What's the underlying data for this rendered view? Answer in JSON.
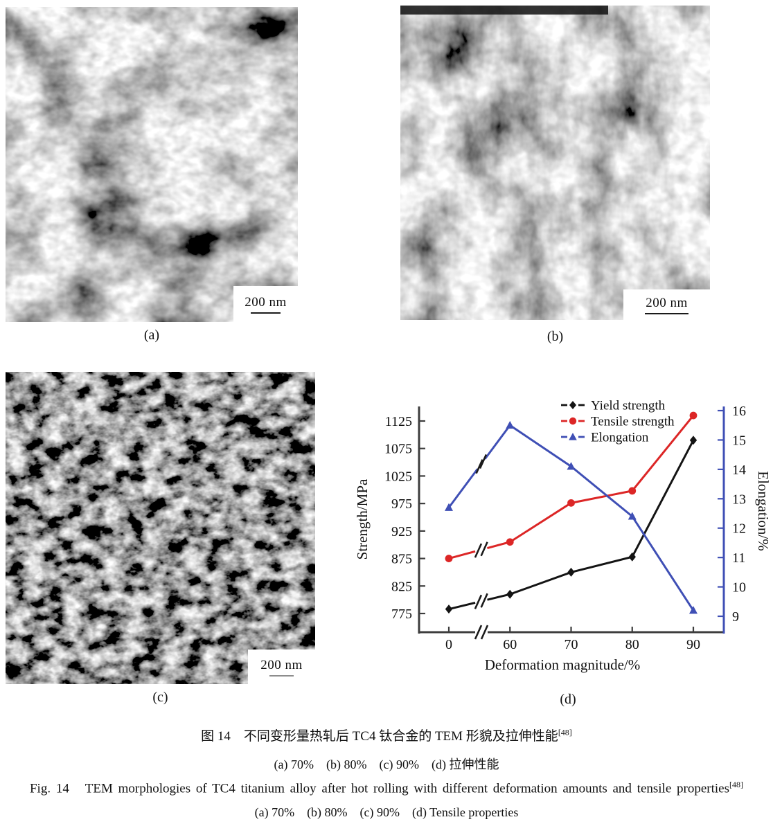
{
  "figure": {
    "panels": [
      {
        "label": "(a)",
        "scale_bar": "200 nm"
      },
      {
        "label": "(b)",
        "scale_bar": "200 nm"
      },
      {
        "label": "(c)",
        "scale_bar": "200 nm"
      },
      {
        "label": "(d)"
      }
    ],
    "caption": {
      "zh_title": "图 14　不同变形量热轧后 TC4 钛合金的 TEM 形貌及拉伸性能",
      "zh_ref": "[48]",
      "zh_subcaption": "(a) 70%    (b) 80%    (c) 90%    (d) 拉伸性能",
      "en_title": "Fig. 14   TEM morphologies of TC4 titanium alloy after hot rolling with different deformation amounts and tensile properties",
      "en_ref": "[48]",
      "en_subcaption": "(a) 70%    (b) 80%    (c) 90%    (d) Tensile properties"
    }
  },
  "chart_data": {
    "type": "line",
    "categories": [
      0,
      60,
      70,
      80,
      90
    ],
    "x_tick_labels": [
      "0",
      "60",
      "70",
      "80",
      "90"
    ],
    "xlabel": "Deformation magnitude/%",
    "ylabel_left": "Strength/MPa",
    "ylabel_right": "Elongation/%",
    "y_left_ticks": [
      775,
      825,
      875,
      925,
      975,
      1025,
      1075,
      1125
    ],
    "y_left_range": [
      755,
      1160
    ],
    "y_right_ticks": [
      9,
      10,
      11,
      12,
      13,
      14,
      15,
      16
    ],
    "y_right_range": [
      8.5,
      16.3
    ],
    "x_axis_break_between": [
      "0",
      "60"
    ],
    "grid": false,
    "legend_position": "top-right-inside",
    "axis_colors": {
      "left_bottom": "#3d3d3d",
      "right": "#3f4fb5"
    },
    "series": [
      {
        "name": "Yield strength",
        "axis": "left",
        "color": "#141414",
        "marker": "diamond",
        "values": [
          783,
          810,
          850,
          878,
          1090
        ]
      },
      {
        "name": "Tensile strength",
        "axis": "left",
        "color": "#dc2626",
        "marker": "circle",
        "values": [
          875,
          905,
          976,
          998,
          1135
        ]
      },
      {
        "name": "Elongation",
        "axis": "right",
        "color": "#3f4fb5",
        "marker": "triangle",
        "values": [
          12.7,
          15.5,
          14.1,
          12.4,
          9.2
        ]
      }
    ]
  }
}
